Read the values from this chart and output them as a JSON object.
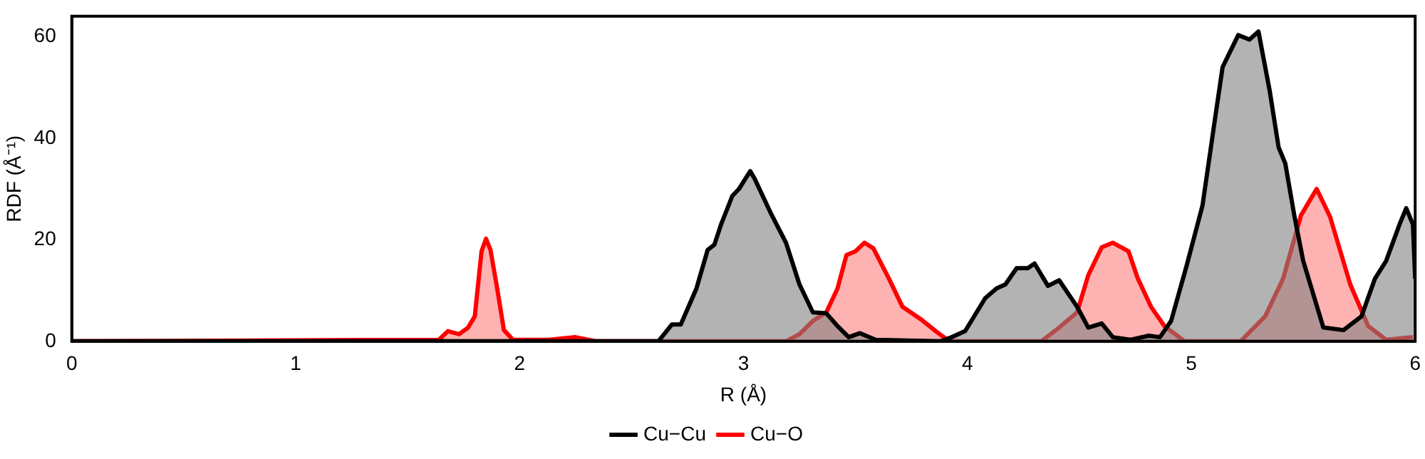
{
  "chart_data": {
    "type": "area",
    "xlabel": "R (Å)",
    "ylabel": "RDF (Å⁻¹)",
    "xlim": [
      0,
      6
    ],
    "xticks": [
      0,
      1,
      2,
      3,
      4,
      5,
      6
    ],
    "ylim": [
      0,
      64
    ],
    "yticks": [
      0,
      20,
      40,
      60
    ],
    "grid": false,
    "legend": "bottom",
    "marker": "none",
    "line_style": "solid",
    "series": [
      {
        "name": "Cu−Cu",
        "color": "#000000",
        "x": [
          0,
          2.62,
          2.68,
          2.72,
          2.79,
          2.84,
          2.87,
          2.9,
          2.95,
          2.98,
          3.03,
          3.05,
          3.12,
          3.19,
          3.25,
          3.31,
          3.37,
          3.42,
          3.47,
          3.52,
          3.59,
          3.88,
          3.93,
          3.99,
          4.08,
          4.13,
          4.17,
          4.22,
          4.27,
          4.3,
          4.36,
          4.41,
          4.49,
          4.54,
          4.6,
          4.65,
          4.73,
          4.81,
          4.86,
          4.91,
          4.98,
          5.05,
          5.11,
          5.14,
          5.21,
          5.26,
          5.3,
          5.35,
          5.39,
          5.42,
          5.46,
          5.5,
          5.55,
          5.59,
          5.68,
          5.76,
          5.82,
          5.87,
          5.93,
          5.96,
          5.99,
          6
        ],
        "values": [
          0,
          0,
          3.3,
          3.3,
          10.4,
          18,
          19,
          23,
          28.6,
          30,
          33.5,
          32,
          25.4,
          19.4,
          11.2,
          5.7,
          5.5,
          3,
          0.8,
          1.6,
          0.3,
          0,
          0.8,
          2,
          8.5,
          10.4,
          11.2,
          14.4,
          14.4,
          15.3,
          10.9,
          12,
          6.8,
          2.7,
          3.5,
          0.8,
          0.3,
          1.1,
          0.8,
          4,
          15,
          26.7,
          45,
          54,
          60.3,
          59.4,
          61,
          49.4,
          38.2,
          35,
          24.8,
          15.8,
          8.5,
          2.7,
          2.2,
          4.9,
          12.3,
          15.8,
          23,
          26.2,
          23,
          12.3
        ]
      },
      {
        "name": "Cu−O",
        "color": "#ff0000",
        "x": [
          0,
          1.64,
          1.68,
          1.73,
          1.77,
          1.8,
          1.83,
          1.85,
          1.87,
          1.9,
          1.93,
          1.97,
          2.13,
          2.25,
          2.34,
          3.19,
          3.25,
          3.31,
          3.37,
          3.42,
          3.46,
          3.5,
          3.54,
          3.58,
          3.65,
          3.71,
          3.79,
          3.87,
          3.92,
          4.33,
          4.41,
          4.49,
          4.54,
          4.6,
          4.65,
          4.72,
          4.76,
          4.82,
          4.88,
          4.97,
          5.22,
          5.33,
          5.41,
          5.49,
          5.56,
          5.62,
          5.71,
          5.79,
          5.87,
          5.99
        ],
        "values": [
          0,
          0.3,
          2,
          1.4,
          2.7,
          4.9,
          17.7,
          20.2,
          18,
          10.4,
          2.2,
          0.3,
          0.3,
          0.8,
          0,
          0,
          1.4,
          4,
          5.7,
          10.4,
          17,
          17.7,
          19.4,
          18.3,
          12.3,
          6.8,
          4.4,
          1.6,
          0,
          0,
          2.7,
          5.7,
          13,
          18.5,
          19.4,
          17.7,
          12.5,
          6.8,
          3,
          0,
          0,
          4.9,
          12.3,
          24.8,
          30,
          24.5,
          11.2,
          3,
          0.3,
          0.8
        ]
      }
    ]
  }
}
